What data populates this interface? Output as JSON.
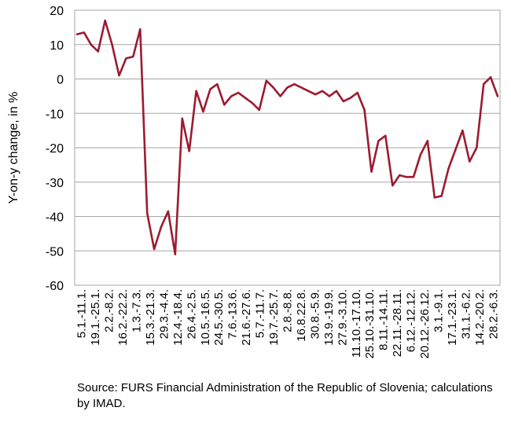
{
  "chart_data": {
    "type": "line",
    "title": "",
    "xlabel": "",
    "ylabel": "Y-on-y change, in %",
    "ylim": [
      -60,
      20
    ],
    "yticks": [
      20,
      10,
      0,
      -10,
      -20,
      -30,
      -40,
      -50,
      -60
    ],
    "grid": true,
    "legend": "none",
    "line_color": "#9b1b30",
    "x_labels": [
      "5.1.-11.1.",
      "19.1.-25.1.",
      "2.2.-8.2.",
      "16.2.-22.2.",
      "1.3.-7.3.",
      "15.3.-21.3.",
      "29.3.-4.4.",
      "12.4.-18.4.",
      "26.4.-2.5.",
      "10.5.-16.5.",
      "24.5.-30.5.",
      "7.6.-13.6.",
      "21.6.-27.6.",
      "5.7.-11.7.",
      "19.7.-25.7.",
      "2.8.-8.8.",
      "16.8.22.8.",
      "30.8.-5.9.",
      "13.9.-19.9.",
      "27.9.-3.10.",
      "11.10.-17.10.",
      "25.10.-31.10.",
      "8.11.-14.11.",
      "22.11.-28.11.",
      "6.12.-12.12.",
      "20.12.-26.12.",
      "3.1.-9.1.",
      "17.1.-23.1.",
      "31.1.-6.2.",
      "14.2.-20.2.",
      "28.2.-6.3."
    ],
    "series": [
      {
        "values": [
          13,
          13.5,
          10,
          8,
          17,
          10,
          1,
          6,
          6.5,
          14.5,
          -39,
          -49.5,
          -43,
          -38.5,
          -51,
          -11.5,
          -21,
          -3.5,
          -9.5,
          -3,
          -1.5,
          -7.5,
          -5,
          -4,
          -5.5,
          -7,
          -9,
          -0.5,
          -2.5,
          -5,
          -2.5,
          -1.5,
          -2.5,
          -3.5,
          -4.5,
          -3.5,
          -5,
          -3.5,
          -6.5,
          -5.5,
          -4,
          -9,
          -27,
          -18,
          -16.5,
          -31,
          -28,
          -28.5,
          -28.5,
          -22,
          -18,
          -34.5,
          -34,
          -26,
          -20.5,
          -15,
          -24,
          -20,
          -1.5,
          0.5,
          -5
        ]
      }
    ]
  },
  "source_note": "Source: FURS Financial Administration of the Republic of Slovenia; calculations by IMAD."
}
